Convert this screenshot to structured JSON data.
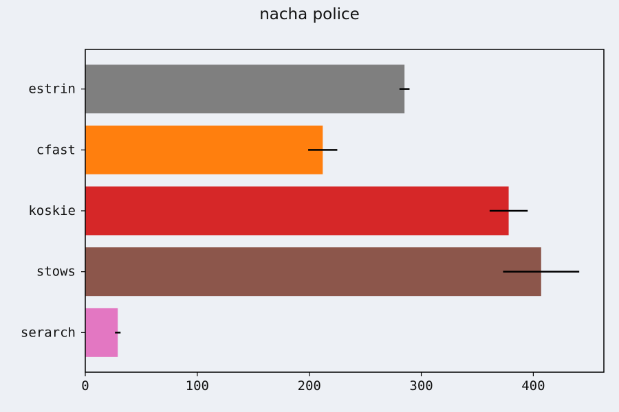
{
  "chart_data": {
    "type": "bar",
    "orientation": "horizontal",
    "title": "nacha police",
    "xlabel": "",
    "ylabel": "",
    "categories": [
      "estrin",
      "cfast",
      "koskie",
      "stows",
      "serarch"
    ],
    "values": [
      285,
      212,
      378,
      407,
      29
    ],
    "errors": [
      4.5,
      13,
      17,
      34,
      2.5
    ],
    "colors": [
      "#7f7f7f",
      "#ff7f0e",
      "#d62728",
      "#8c564b",
      "#e377c2"
    ],
    "xlim": [
      0,
      463
    ],
    "xticks": [
      0,
      100,
      200,
      300,
      400
    ],
    "grid": false,
    "legend": "none"
  }
}
